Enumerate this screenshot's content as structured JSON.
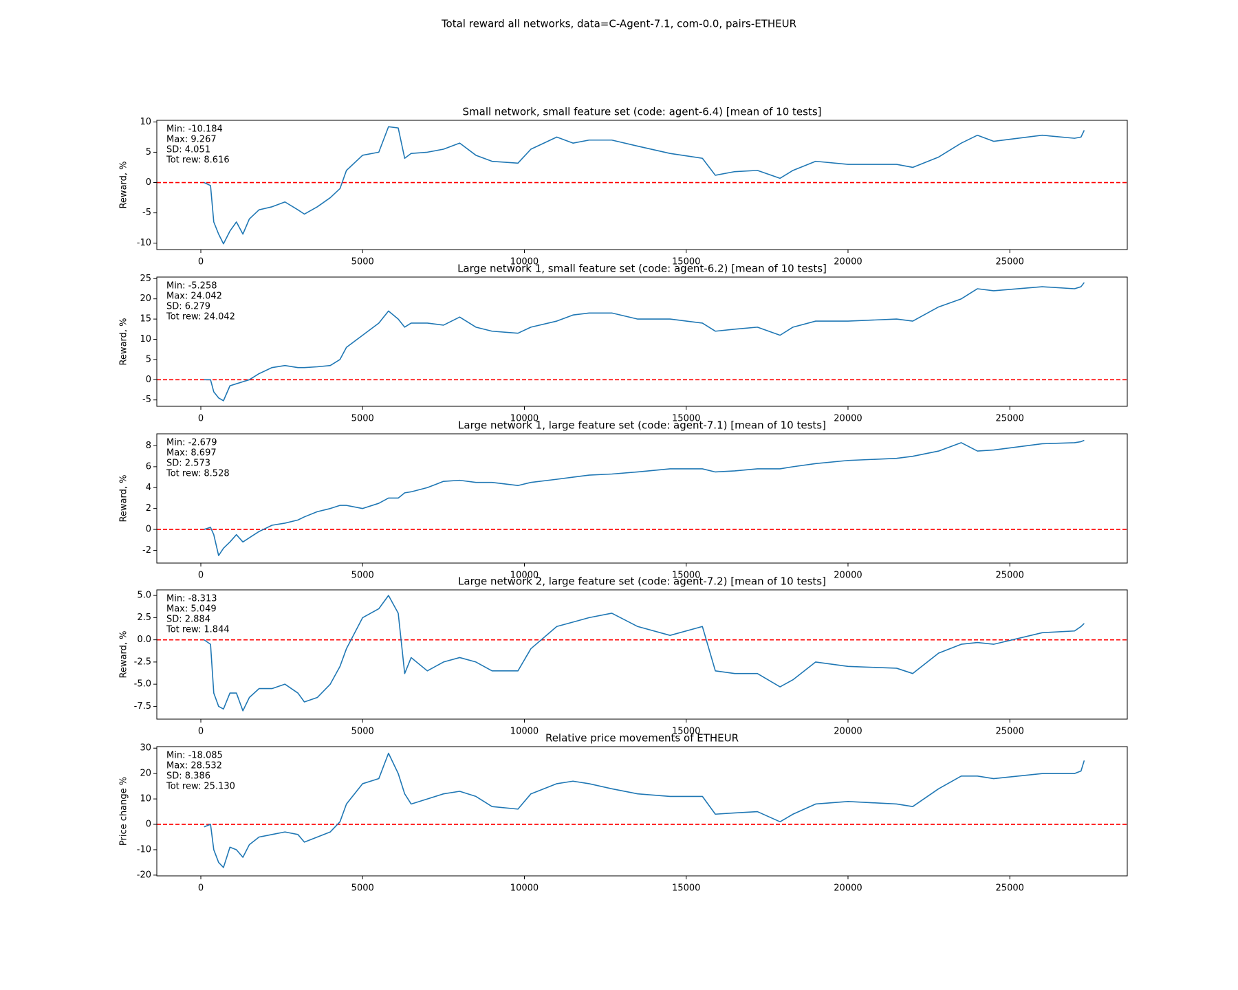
{
  "title": "Total reward all networks, data=C-Agent-7.1, com-0.0, pairs-ETHEUR",
  "chart_data": [
    {
      "type": "line",
      "title": "Small network, small feature set (code: agent-6.4) [mean of 10 tests]",
      "ylabel": "Reward, %",
      "annotations": [
        "Min: -10.184",
        "Max: 9.267",
        "SD: 4.051",
        "Tot rew: 8.616"
      ],
      "color": "#1f77b4",
      "hline": {
        "value": 0,
        "color": "#ff0000",
        "linestyle": "dashed"
      },
      "xlim": [
        -1360,
        28630
      ],
      "xticks": [
        0,
        5000,
        10000,
        15000,
        20000,
        25000
      ],
      "ylim": [
        -11.05,
        10.26
      ],
      "yticks": [
        -10,
        -5,
        0,
        5,
        10
      ],
      "x": [
        100,
        300,
        400,
        550,
        700,
        900,
        1100,
        1300,
        1500,
        1800,
        2200,
        2600,
        3000,
        3200,
        3600,
        4000,
        4300,
        4500,
        5000,
        5500,
        5800,
        6100,
        6300,
        6500,
        7000,
        7500,
        8000,
        8500,
        9000,
        9800,
        10200,
        11000,
        11500,
        12000,
        12700,
        13500,
        14500,
        15500,
        15900,
        16500,
        17200,
        17900,
        18300,
        19000,
        20000,
        21500,
        22000,
        22800,
        23500,
        24000,
        24500,
        26000,
        27000,
        27200,
        27300
      ],
      "values": [
        0,
        -0.5,
        -6.5,
        -8.5,
        -10.1,
        -8,
        -6.5,
        -8.5,
        -6,
        -4.5,
        -4,
        -3.2,
        -4.5,
        -5.2,
        -4,
        -2.5,
        -1,
        2,
        4.5,
        5,
        9.2,
        9,
        4,
        4.8,
        5,
        5.5,
        6.5,
        4.5,
        3.5,
        3.2,
        5.5,
        7.5,
        6.5,
        7,
        7,
        6,
        4.8,
        4,
        1.2,
        1.8,
        2,
        0.7,
        2,
        3.5,
        3,
        3,
        2.5,
        4.2,
        6.5,
        7.8,
        6.8,
        7.8,
        7.3,
        7.5,
        8.616
      ]
    },
    {
      "type": "line",
      "title": "Large network 1, small feature set (code: agent-6.2) [mean of 10 tests]",
      "ylabel": "Reward, %",
      "annotations": [
        "Min: -5.258",
        "Max: 24.042",
        "SD: 6.279",
        "Tot rew: 24.042"
      ],
      "color": "#1f77b4",
      "hline": {
        "value": 0,
        "color": "#ff0000",
        "linestyle": "dashed"
      },
      "xlim": [
        -1360,
        28630
      ],
      "xticks": [
        0,
        5000,
        10000,
        15000,
        20000,
        25000
      ],
      "ylim": [
        -6.58,
        25.39
      ],
      "yticks": [
        -5,
        0,
        5,
        10,
        15,
        20,
        25
      ],
      "x": [
        100,
        300,
        400,
        550,
        700,
        900,
        1100,
        1300,
        1500,
        1800,
        2200,
        2600,
        3000,
        3200,
        3600,
        4000,
        4300,
        4500,
        5000,
        5500,
        5800,
        6100,
        6300,
        6500,
        7000,
        7500,
        8000,
        8500,
        9000,
        9800,
        10200,
        11000,
        11500,
        12000,
        12700,
        13500,
        14500,
        15500,
        15900,
        16500,
        17200,
        17900,
        18300,
        19000,
        20000,
        21500,
        22000,
        22800,
        23500,
        24000,
        24500,
        26000,
        27000,
        27200,
        27300
      ],
      "values": [
        0,
        0,
        -3,
        -4.5,
        -5.2,
        -1.5,
        -1,
        -0.5,
        0,
        1.5,
        3,
        3.5,
        3,
        3,
        3.2,
        3.5,
        5,
        8,
        11,
        14,
        17,
        15,
        13,
        14,
        14,
        13.5,
        15.5,
        13,
        12,
        11.5,
        13,
        14.5,
        16,
        16.5,
        16.5,
        15,
        15,
        14,
        12,
        12.5,
        13,
        11,
        13,
        14.5,
        14.5,
        15,
        14.5,
        18,
        20,
        22.5,
        22,
        23,
        22.5,
        23,
        24.042
      ]
    },
    {
      "type": "line",
      "title": "Large network 1, large feature set (code: agent-7.1) [mean of 10 tests]",
      "ylabel": "Reward, %",
      "annotations": [
        "Min: -2.679",
        "Max: 8.697",
        "SD: 2.573",
        "Tot rew: 8.528"
      ],
      "color": "#1f77b4",
      "hline": {
        "value": 0,
        "color": "#ff0000",
        "linestyle": "dashed"
      },
      "xlim": [
        -1360,
        28630
      ],
      "xticks": [
        0,
        5000,
        10000,
        15000,
        20000,
        25000
      ],
      "ylim": [
        -3.22,
        9.15
      ],
      "yticks": [
        -2,
        0,
        2,
        4,
        6,
        8
      ],
      "x": [
        100,
        300,
        400,
        550,
        700,
        900,
        1100,
        1300,
        1500,
        1800,
        2200,
        2600,
        3000,
        3200,
        3600,
        4000,
        4300,
        4500,
        5000,
        5500,
        5800,
        6100,
        6300,
        6500,
        7000,
        7500,
        8000,
        8500,
        9000,
        9800,
        10200,
        11000,
        11500,
        12000,
        12700,
        13500,
        14500,
        15500,
        15900,
        16500,
        17200,
        17900,
        18300,
        19000,
        20000,
        21500,
        22000,
        22800,
        23500,
        24000,
        24500,
        26000,
        27000,
        27200,
        27300
      ],
      "values": [
        0,
        0.2,
        -0.5,
        -2.5,
        -1.8,
        -1.2,
        -0.5,
        -1.2,
        -0.8,
        -0.2,
        0.4,
        0.6,
        0.9,
        1.2,
        1.7,
        2,
        2.3,
        2.3,
        2,
        2.5,
        3,
        3,
        3.5,
        3.6,
        4,
        4.6,
        4.7,
        4.5,
        4.5,
        4.2,
        4.5,
        4.8,
        5,
        5.2,
        5.3,
        5.5,
        5.8,
        5.8,
        5.5,
        5.6,
        5.8,
        5.8,
        6,
        6.3,
        6.6,
        6.8,
        7,
        7.5,
        8.3,
        7.5,
        7.6,
        8.2,
        8.3,
        8.4,
        8.528
      ]
    },
    {
      "type": "line",
      "title": "Large network 2, large feature set (code: agent-7.2) [mean of 10 tests]",
      "ylabel": "Reward, %",
      "annotations": [
        "Min: -8.313",
        "Max: 5.049",
        "SD: 2.884",
        "Tot rew: 1.844"
      ],
      "color": "#1f77b4",
      "hline": {
        "value": 0,
        "color": "#ff0000",
        "linestyle": "dashed"
      },
      "xlim": [
        -1360,
        28630
      ],
      "xticks": [
        0,
        5000,
        10000,
        15000,
        20000,
        25000
      ],
      "ylim": [
        -8.94,
        5.63
      ],
      "yticks": [
        -7.5,
        {
          "value": -5,
          "label": "-5.0"
        },
        -2.5,
        {
          "value": 0,
          "label": "0.0"
        },
        2.5,
        {
          "value": 5,
          "label": "5.0"
        }
      ],
      "x": [
        100,
        300,
        400,
        550,
        700,
        900,
        1100,
        1300,
        1500,
        1800,
        2200,
        2600,
        3000,
        3200,
        3600,
        4000,
        4300,
        4500,
        5000,
        5500,
        5800,
        6100,
        6300,
        6500,
        7000,
        7500,
        8000,
        8500,
        9000,
        9800,
        10200,
        11000,
        11500,
        12000,
        12700,
        13500,
        14500,
        15500,
        15900,
        16500,
        17200,
        17900,
        18300,
        19000,
        20000,
        21500,
        22000,
        22800,
        23500,
        24000,
        24500,
        26000,
        27000,
        27200,
        27300
      ],
      "values": [
        0,
        -0.5,
        -6,
        -7.5,
        -7.8,
        -6,
        -6,
        -8,
        -6.5,
        -5.5,
        -5.5,
        -5,
        -6,
        -7,
        -6.5,
        -5,
        -3,
        -1,
        2.5,
        3.5,
        5,
        3,
        -3.8,
        -2,
        -3.5,
        -2.5,
        -2,
        -2.5,
        -3.5,
        -3.5,
        -1,
        1.5,
        2,
        2.5,
        3,
        1.5,
        0.5,
        1.5,
        -3.5,
        -3.8,
        -3.8,
        -5.3,
        -4.5,
        -2.5,
        -3,
        -3.2,
        -3.8,
        -1.5,
        -0.5,
        -0.3,
        -0.5,
        0.8,
        1,
        1.5,
        1.844
      ]
    },
    {
      "type": "line",
      "title": "Relative price movements of ETHEUR",
      "ylabel": "Price change %",
      "annotations": [
        "Min: -18.085",
        "Max: 28.532",
        "SD: 8.386",
        "Tot rew: 25.130"
      ],
      "color": "#1f77b4",
      "hline": {
        "value": 0,
        "color": "#ff0000",
        "linestyle": "dashed"
      },
      "xlim": [
        -1360,
        28630
      ],
      "xticks": [
        0,
        5000,
        10000,
        15000,
        20000,
        25000
      ],
      "ylim": [
        -20.3,
        30.6
      ],
      "yticks": [
        -20,
        -10,
        0,
        10,
        20,
        30
      ],
      "x": [
        100,
        300,
        400,
        550,
        700,
        900,
        1100,
        1300,
        1500,
        1800,
        2200,
        2600,
        3000,
        3200,
        3600,
        4000,
        4300,
        4500,
        5000,
        5500,
        5800,
        6100,
        6300,
        6500,
        7000,
        7500,
        8000,
        8500,
        9000,
        9800,
        10200,
        11000,
        11500,
        12000,
        12700,
        13500,
        14500,
        15500,
        15900,
        16500,
        17200,
        17900,
        18300,
        19000,
        20000,
        21500,
        22000,
        22800,
        23500,
        24000,
        24500,
        26000,
        27000,
        27200,
        27300
      ],
      "values": [
        -1,
        0,
        -10,
        -15,
        -17,
        -9,
        -10,
        -13,
        -8,
        -5,
        -4,
        -3,
        -4,
        -7,
        -5,
        -3,
        1,
        8,
        16,
        18,
        28,
        20,
        12,
        8,
        10,
        12,
        13,
        11,
        7,
        6,
        12,
        16,
        17,
        16,
        14,
        12,
        11,
        11,
        4,
        4.5,
        5,
        1,
        4,
        8,
        9,
        8,
        7,
        14,
        19,
        19,
        18,
        20,
        20,
        21,
        25.13
      ]
    }
  ]
}
